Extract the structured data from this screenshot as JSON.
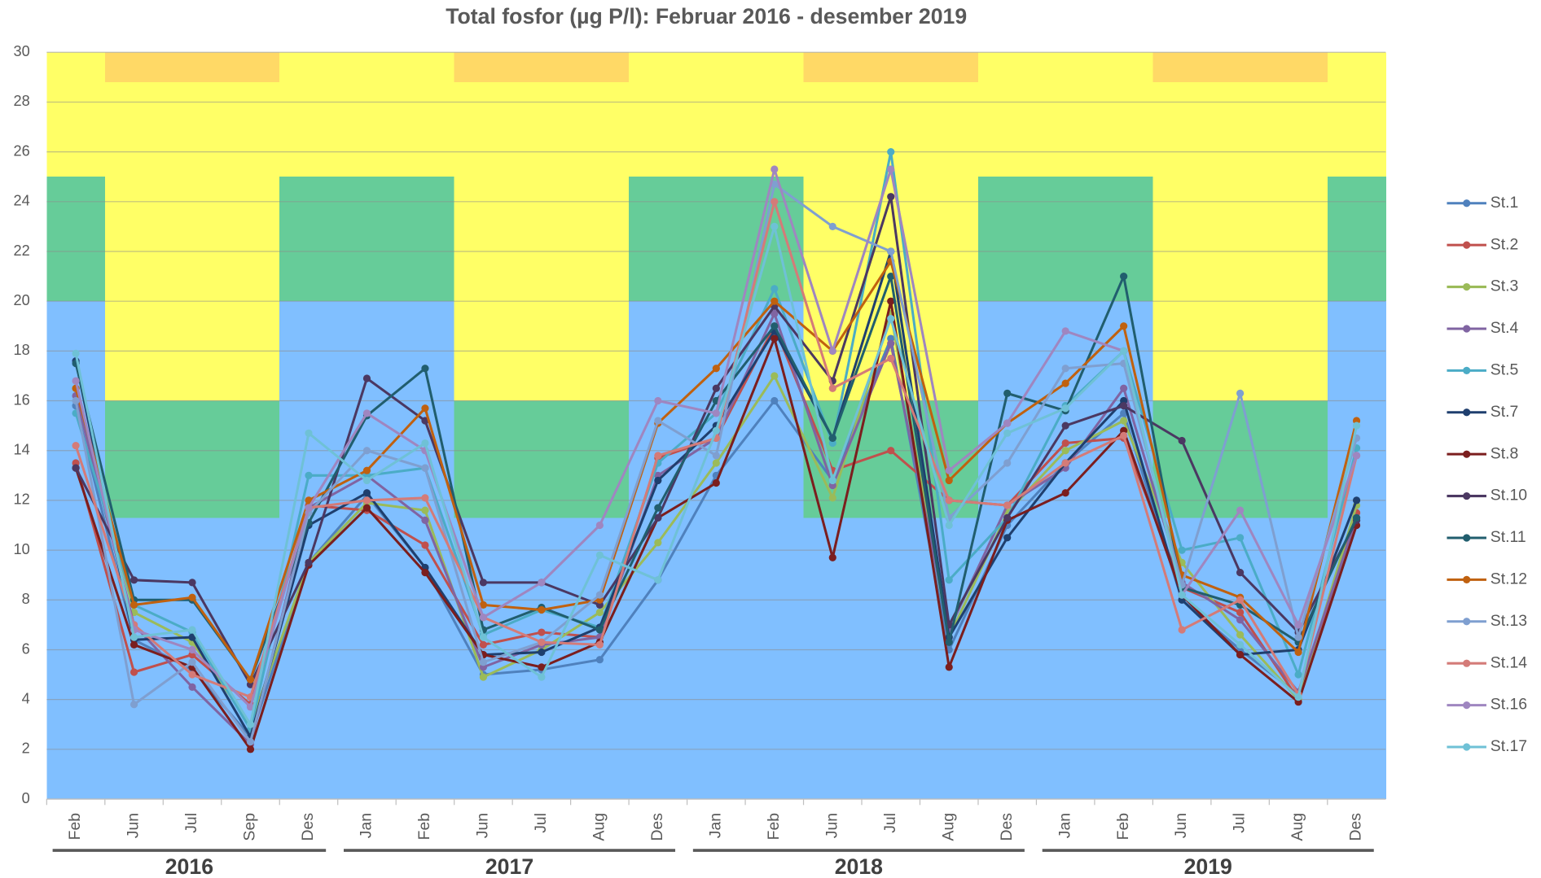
{
  "chart_data": {
    "type": "line",
    "title": "Total fosfor (µg P/l): Februar 2016 - desember 2019",
    "category_groups": [
      {
        "label": "2016",
        "categories": [
          "Feb",
          "Jun",
          "Jul",
          "Sep",
          "Des"
        ]
      },
      {
        "label": "2017",
        "categories": [
          "Jan",
          "Feb",
          "Jun",
          "Jul",
          "Aug",
          "Des"
        ]
      },
      {
        "label": "2018",
        "categories": [
          "Jan",
          "Feb",
          "Jun",
          "Jul",
          "Aug",
          "Des"
        ]
      },
      {
        "label": "2019",
        "categories": [
          "Jan",
          "Feb",
          "Jun",
          "Jul",
          "Aug",
          "Des"
        ]
      }
    ],
    "season": [
      "winter",
      "summer",
      "summer",
      "summer",
      "winter",
      "winter",
      "winter",
      "summer",
      "summer",
      "summer",
      "winter",
      "winter",
      "winter",
      "summer",
      "summer",
      "summer",
      "winter",
      "winter",
      "winter",
      "summer",
      "summer",
      "summer",
      "winter"
    ],
    "zones": {
      "winter": [
        {
          "from": 0,
          "to": 20,
          "color": "#80bfff"
        },
        {
          "from": 20,
          "to": 25,
          "color": "#66cc99"
        },
        {
          "from": 25,
          "to": 30,
          "color": "#ffff66"
        }
      ],
      "summer": [
        {
          "from": 0,
          "to": 11.3,
          "color": "#80bfff"
        },
        {
          "from": 11.3,
          "to": 16,
          "color": "#66cc99"
        },
        {
          "from": 16,
          "to": 28.8,
          "color": "#ffff66"
        },
        {
          "from": 28.8,
          "to": 30,
          "color": "#ffd966"
        }
      ]
    },
    "ylim": [
      0,
      30
    ],
    "yticks": [
      0,
      2,
      4,
      6,
      8,
      10,
      12,
      14,
      16,
      18,
      20,
      22,
      24,
      26,
      28,
      30
    ],
    "grid": true,
    "legend": "right",
    "series": [
      {
        "name": "St.1",
        "color": "#4f81bd",
        "values": [
          15.8,
          6.4,
          5.2,
          2.5,
          9.5,
          12.2,
          9.3,
          5.0,
          5.2,
          5.6,
          8.8,
          13.0,
          16.0,
          12.8,
          18.5,
          6.0,
          11.0,
          13.5,
          15.5,
          8.0,
          6.0,
          4.2,
          11.2
        ]
      },
      {
        "name": "St.2",
        "color": "#c0504d",
        "values": [
          13.5,
          5.1,
          5.8,
          3.8,
          11.8,
          11.6,
          10.2,
          6.2,
          6.7,
          6.5,
          13.7,
          14.5,
          19.0,
          13.2,
          14.0,
          12.0,
          11.8,
          14.3,
          14.5,
          8.5,
          7.5,
          4.0,
          11.5
        ]
      },
      {
        "name": "St.3",
        "color": "#9bbb59",
        "values": [
          16.5,
          7.5,
          6.3,
          3.0,
          9.5,
          11.9,
          11.6,
          4.9,
          6.0,
          7.5,
          10.3,
          13.5,
          17.0,
          12.1,
          19.5,
          6.5,
          11.5,
          14.0,
          15.2,
          9.5,
          6.6,
          4.0,
          11.8
        ]
      },
      {
        "name": "St.4",
        "color": "#8064a2",
        "values": [
          16.2,
          7.0,
          4.5,
          2.2,
          11.7,
          13.0,
          11.2,
          5.3,
          6.2,
          6.5,
          13.0,
          14.5,
          19.5,
          12.6,
          18.3,
          6.8,
          11.8,
          13.3,
          16.5,
          8.7,
          7.2,
          4.3,
          11.3
        ]
      },
      {
        "name": "St.5",
        "color": "#4bacc6",
        "values": [
          15.5,
          7.8,
          6.7,
          2.8,
          13.0,
          13.0,
          13.3,
          6.6,
          7.6,
          6.9,
          13.5,
          15.5,
          20.5,
          14.3,
          26.0,
          8.8,
          11.3,
          15.8,
          18.0,
          10.0,
          10.5,
          5.0,
          14.1
        ]
      },
      {
        "name": "St.7",
        "color": "#1f3f6e",
        "values": [
          17.6,
          6.4,
          6.5,
          2.5,
          11.0,
          12.3,
          9.3,
          5.8,
          5.9,
          6.9,
          12.8,
          15.0,
          18.8,
          14.5,
          22.0,
          6.5,
          10.5,
          13.5,
          16.0,
          8.0,
          5.8,
          6.0,
          12.0
        ]
      },
      {
        "name": "St.8",
        "color": "#7b1e1e",
        "values": [
          13.3,
          6.2,
          5.3,
          2.0,
          9.4,
          11.7,
          9.1,
          5.8,
          5.3,
          6.3,
          11.3,
          12.7,
          18.5,
          9.7,
          20.0,
          5.3,
          11.2,
          12.3,
          14.8,
          8.2,
          5.8,
          3.9,
          11.0
        ]
      },
      {
        "name": "St.10",
        "color": "#4b3862",
        "values": [
          13.3,
          8.8,
          8.7,
          4.6,
          9.5,
          16.9,
          15.2,
          8.7,
          8.7,
          7.8,
          11.3,
          16.5,
          19.8,
          16.8,
          24.2,
          7.0,
          11.3,
          15.0,
          15.8,
          14.4,
          9.1,
          6.7,
          11.2
        ]
      },
      {
        "name": "St.11",
        "color": "#215e6e",
        "values": [
          17.5,
          8.0,
          8.0,
          4.8,
          11.1,
          15.4,
          17.3,
          6.8,
          7.7,
          6.8,
          11.7,
          16.0,
          19.0,
          14.5,
          21.0,
          6.3,
          16.3,
          15.6,
          21.0,
          8.5,
          7.8,
          6.3,
          11.3
        ]
      },
      {
        "name": "St.12",
        "color": "#c0610f",
        "values": [
          16.5,
          7.8,
          8.1,
          4.8,
          12.0,
          13.2,
          15.7,
          7.8,
          7.6,
          8.0,
          15.1,
          17.3,
          20.0,
          18.0,
          21.6,
          12.8,
          15.1,
          16.7,
          19.0,
          9.0,
          8.1,
          5.9,
          15.2
        ]
      },
      {
        "name": "St.13",
        "color": "#7f9fd0",
        "values": [
          16.0,
          3.8,
          5.5,
          2.3,
          11.5,
          14.0,
          13.3,
          5.5,
          6.3,
          8.2,
          15.2,
          13.8,
          24.7,
          23.0,
          22.0,
          11.3,
          13.5,
          17.3,
          17.5,
          8.6,
          16.3,
          6.5,
          14.5
        ]
      },
      {
        "name": "St.14",
        "color": "#d47b78",
        "values": [
          14.2,
          7.0,
          5.0,
          4.1,
          11.7,
          12.0,
          12.1,
          7.3,
          6.3,
          6.2,
          13.8,
          14.5,
          24.0,
          16.5,
          17.7,
          12.0,
          11.8,
          13.5,
          14.6,
          6.8,
          8.0,
          4.2,
          13.8
        ]
      },
      {
        "name": "St.16",
        "color": "#9f86c0",
        "values": [
          16.8,
          6.8,
          6.0,
          3.7,
          11.7,
          15.5,
          14.0,
          7.3,
          8.7,
          11.0,
          16.0,
          15.5,
          25.3,
          18.0,
          25.3,
          13.2,
          15.1,
          18.8,
          18.0,
          8.2,
          11.6,
          7.0,
          13.8
        ]
      },
      {
        "name": "St.17",
        "color": "#6fc1d6",
        "values": [
          17.9,
          6.5,
          6.8,
          3.0,
          14.7,
          12.8,
          14.3,
          6.5,
          4.9,
          9.8,
          8.8,
          14.8,
          23.0,
          12.8,
          19.3,
          11.0,
          14.7,
          15.7,
          18.0,
          8.2,
          6.2,
          4.1,
          15.0
        ]
      }
    ]
  }
}
